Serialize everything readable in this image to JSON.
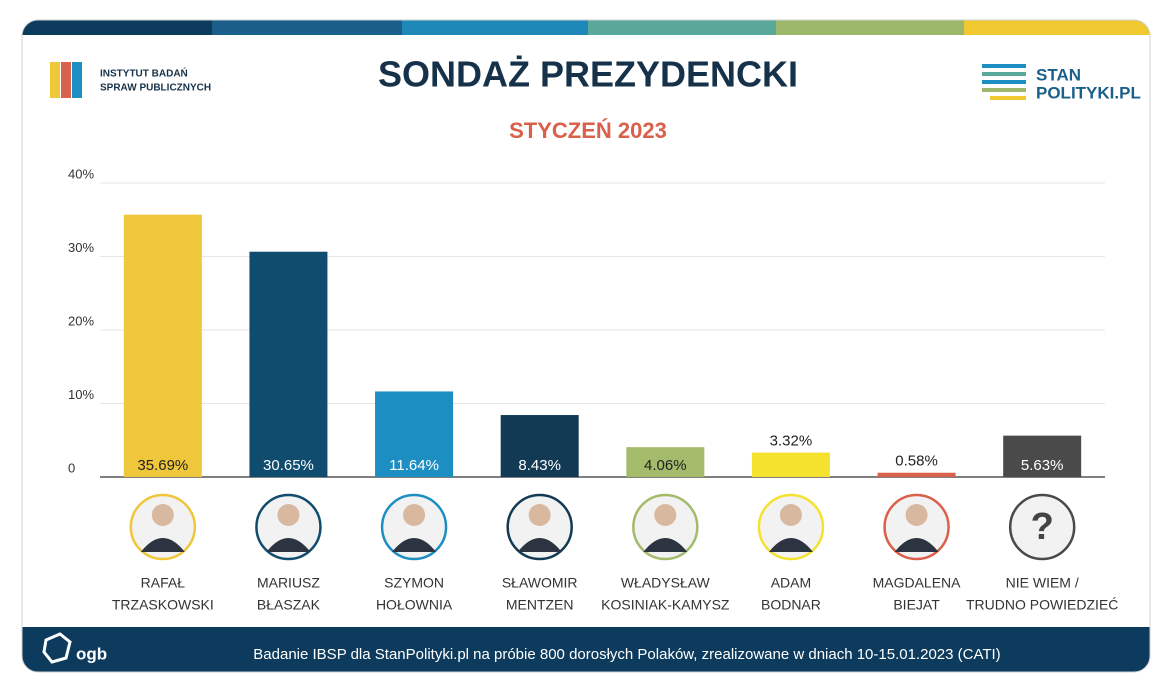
{
  "chart_data": {
    "type": "bar",
    "title": "SONDAŻ PREZYDENCKI",
    "subtitle": "STYCZEŃ 2023",
    "categories": [
      [
        "RAFAŁ",
        "TRZASKOWSKI"
      ],
      [
        "MARIUSZ",
        "BŁASZAK"
      ],
      [
        "SZYMON",
        "HOŁOWNIA"
      ],
      [
        "SŁAWOMIR",
        "MENTZEN"
      ],
      [
        "WŁADYSŁAW",
        "KOSINIAK-KAMYSZ"
      ],
      [
        "ADAM",
        "BODNAR"
      ],
      [
        "MAGDALENA",
        "BIEJAT"
      ],
      [
        "NIE WIEM /",
        "TRUDNO POWIEDZIEĆ"
      ]
    ],
    "values": [
      35.69,
      30.65,
      11.64,
      8.43,
      4.06,
      3.32,
      0.58,
      5.63
    ],
    "value_labels": [
      "35.69%",
      "30.65%",
      "11.64%",
      "8.43%",
      "4.06%",
      "3.32%",
      "0.58%",
      "5.63%"
    ],
    "colors": [
      "#f0c63a",
      "#0f4c6e",
      "#1d8ec2",
      "#123a55",
      "#a3bb6a",
      "#f4e22e",
      "#d9604a",
      "#4a4a4a"
    ],
    "ylim": [
      0,
      40
    ],
    "yticks": [
      0,
      {
        "value": 10,
        "label": "10%"
      },
      {
        "value": 20,
        "label": "20%"
      },
      {
        "value": 30,
        "label": "30%"
      },
      {
        "value": 40,
        "label": "40%"
      }
    ],
    "grid": true
  },
  "logos": {
    "left": [
      "INSTYTUT BADAŃ",
      "SPRAW PUBLICZNYCH"
    ],
    "right": [
      "STAN",
      "POLITYKI.PL"
    ],
    "footer": "ogb"
  },
  "placeholder": "?",
  "footer": "Badanie IBSP dla StanPolityki.pl na próbie 800 dorosłych Polaków, zrealizowane w dniach 10-15.01.2023 (CATI)"
}
